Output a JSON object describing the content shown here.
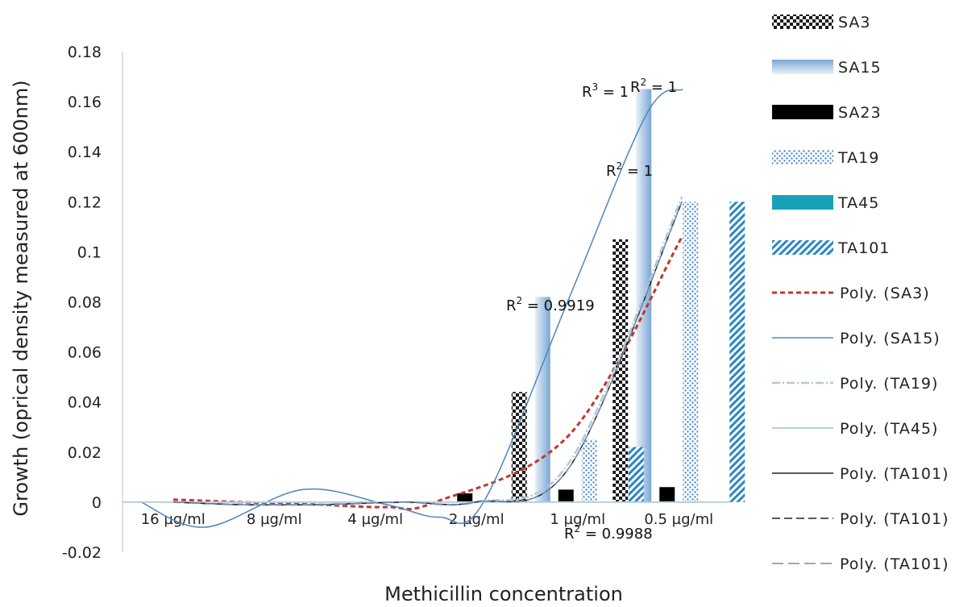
{
  "chart_data": {
    "type": "bar",
    "title": "",
    "xlabel": "Methicillin concentration",
    "ylabel": "Growth (oprical density measured at 600nm)",
    "ylim": [
      -0.02,
      0.18
    ],
    "yticks": [
      "-0.02",
      "0",
      "0.02",
      "0.04",
      "0.06",
      "0.08",
      "0.1",
      "0.12",
      "0.14",
      "0.16",
      "0.18"
    ],
    "categories": [
      "16 µg/ml",
      "8 µg/ml",
      "4 µg/ml",
      "2 µg/ml",
      "1 µg/ml",
      "0.5 µg/ml"
    ],
    "grid": false,
    "legend_position": "right",
    "series": [
      {
        "name": "SA3",
        "pattern": "checker",
        "color": "#1a1a1a",
        "values": [
          0.0005,
          0,
          0,
          0,
          0.044,
          0.105
        ]
      },
      {
        "name": "SA15",
        "pattern": "gradient",
        "color": "#7aa7d4",
        "values": [
          0,
          0,
          0,
          0,
          0.082,
          0.165
        ]
      },
      {
        "name": "SA23",
        "pattern": "solid",
        "color": "#000000",
        "values": [
          0.0005,
          -0.0005,
          -0.0005,
          0.0035,
          0.005,
          0.006
        ]
      },
      {
        "name": "TA19",
        "pattern": "dots",
        "color": "#4a8ad0",
        "values": [
          0,
          0,
          0,
          0,
          0.025,
          0.12
        ]
      },
      {
        "name": "TA45",
        "pattern": "solid",
        "color": "#17a2b8",
        "values": [
          0,
          0,
          0,
          0,
          0.0005,
          0.0005
        ]
      },
      {
        "name": "TA101",
        "pattern": "diagonal",
        "color": "#2b86c5",
        "values": [
          0,
          0,
          0,
          0,
          0.022,
          0.12
        ]
      }
    ],
    "trendlines": [
      {
        "name": "Poly. (SA3)",
        "style": "dashed-red",
        "color": "#c0392b",
        "values": [
          0.001,
          0.0,
          -0.002,
          0.002,
          0.027,
          0.106
        ]
      },
      {
        "name": "Poly. (SA15)",
        "style": "solid-blue",
        "color": "#4a86c0",
        "values": [
          0.0,
          0.0,
          0.0,
          0.0,
          0.082,
          0.165
        ]
      },
      {
        "name": "Poly. (TA19)",
        "style": "dashdot-light",
        "color": "#b3c8d8",
        "values": [
          0.0,
          -0.001,
          -0.001,
          0.0,
          0.016,
          0.122
        ]
      },
      {
        "name": "Poly. (TA45)",
        "style": "solid-light",
        "color": "#b7cde0",
        "values": [
          0.0,
          0.0,
          0.0,
          0.0,
          0.0,
          0.0
        ]
      },
      {
        "name": "Poly. (TA101)",
        "style": "solid-black",
        "color": "#222222",
        "values": [
          0.0,
          -0.001,
          -0.001,
          0.0,
          0.014,
          0.12
        ]
      },
      {
        "name": "Poly. (TA101)",
        "style": "solid-black2",
        "color": "#222222",
        "values": [
          0.0,
          -0.001,
          -0.001,
          0.0,
          0.014,
          0.12
        ]
      },
      {
        "name": "Poly. (TA101)",
        "style": "longdash-blue",
        "color": "#6f8fb8",
        "values": [
          0.0,
          -0.001,
          -0.001,
          0.0,
          0.014,
          0.12
        ]
      }
    ],
    "annotations": [
      {
        "prefix": "R",
        "sup": "3",
        "suffix": " =  1"
      },
      {
        "prefix": "R",
        "sup": "2",
        "suffix": " =  1"
      },
      {
        "prefix": "R",
        "sup": "2",
        "suffix": " =  1"
      },
      {
        "prefix": "R",
        "sup": "2",
        "suffix": " = 0.9919"
      },
      {
        "prefix": "R",
        "sup": "2",
        "suffix": " = 0.9988"
      }
    ]
  }
}
